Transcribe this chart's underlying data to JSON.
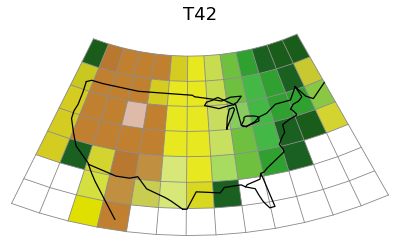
{
  "title": "T42",
  "title_fontsize": 13,
  "background_color": "#ffffff",
  "grid_color": "#888888",
  "grid_linewidth": 0.6,
  "grid_rows": 7,
  "grid_cols": 13,
  "lon_min": -128,
  "lon_max": -60,
  "lat_min": 21,
  "lat_max": 57,
  "central_lon": -96,
  "central_lat": 39,
  "std_par1": 33,
  "std_par2": 60,
  "cell_colors": [
    [
      "#1a5c1a",
      "#b87830",
      "#c08030",
      "#c08030",
      "#c08030",
      "#d4cc20",
      "#e8e820",
      "#c8dc50",
      "#70c040",
      "#30a030",
      "#1a6020",
      "#1a5c1a",
      "#1a5c1a"
    ],
    [
      "#c8c820",
      "#c08030",
      "#c08030",
      "#c08030",
      "#d4cc20",
      "#e8e820",
      "#e8e820",
      "#c8dc50",
      "#70c040",
      "#44b844",
      "#30a030",
      "#1a6020",
      "#c8c830"
    ],
    [
      "#d4cc20",
      "#c08030",
      "#c08030",
      "#ddbba8",
      "#c08030",
      "#e8e820",
      "#e8e820",
      "#c8dc60",
      "#88cc60",
      "#44b844",
      "#30a030",
      "#30a030",
      "#88c844"
    ],
    [
      "#d4cc20",
      "#c08030",
      "#c08030",
      "#c08030",
      "#c08030",
      "#e8e820",
      "#e8e820",
      "#c8e060",
      "#70c040",
      "#44b844",
      "#1a6020",
      "#1a5c1a",
      "#d4d430"
    ],
    [
      "#d4cc20",
      "#1a6020",
      "#d4d430",
      "#b87830",
      "#c09040",
      "#d8e878",
      "#e8e820",
      "#a8dc60",
      "#70c040",
      "#30a030",
      "#1a6020",
      "#ffffff",
      "#ffffff"
    ],
    [
      "#ffffff",
      "#ffffff",
      "#d4e040",
      "#c09040",
      "#c8cc50",
      "#d8e878",
      "#d8d820",
      "#1a6020",
      "#ffffff",
      "#ffffff",
      "#ffffff",
      "#ffffff",
      "#ffffff"
    ],
    [
      "#ffffff",
      "#ffffff",
      "#e0e000",
      "#c08030",
      "#ffffff",
      "#ffffff",
      "#ffffff",
      "#ffffff",
      "#ffffff",
      "#ffffff",
      "#ffffff",
      "#ffffff",
      "#ffffff"
    ]
  ],
  "coastline_color": "#000000",
  "coastline_lw": 0.9
}
